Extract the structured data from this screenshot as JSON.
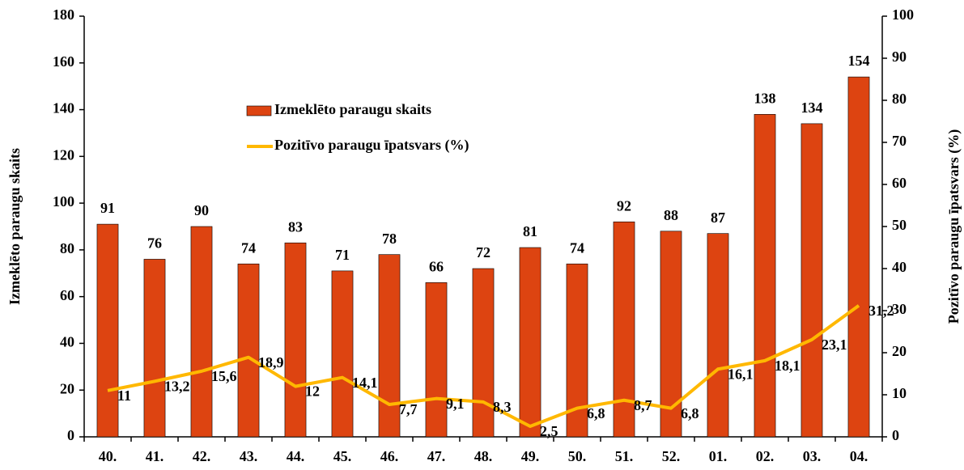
{
  "chart_data": {
    "type": "bar-line",
    "categories": [
      "40.",
      "41.",
      "42.",
      "43.",
      "44.",
      "45.",
      "46.",
      "47.",
      "48.",
      "49.",
      "50.",
      "51.",
      "52.",
      "01.",
      "02.",
      "03.",
      "04."
    ],
    "series": [
      {
        "name": "Izmeklēto paraugu skaits",
        "type": "bar",
        "color": "#dd4411",
        "values": [
          91,
          76,
          90,
          74,
          83,
          71,
          78,
          66,
          72,
          81,
          74,
          92,
          88,
          87,
          138,
          134,
          154
        ]
      },
      {
        "name": "Pozitīvo paraugu īpatsvars (%)",
        "type": "line",
        "axis": "y2",
        "color": "#ffb800",
        "values": [
          11,
          13.2,
          15.6,
          18.9,
          12,
          14.1,
          7.7,
          9.1,
          8.3,
          2.5,
          6.8,
          8.7,
          6.8,
          16.1,
          18.1,
          23.1,
          31.2
        ],
        "value_labels": [
          "11",
          "13,2",
          "15,6",
          "18,9",
          "12",
          "14,1",
          "7,7",
          "9,1",
          "8,3",
          "2,5",
          "6,8",
          "8,7",
          "6,8",
          "16,1",
          "18,1",
          "23,1",
          "31,2"
        ]
      }
    ],
    "y_label": "Izmeklēto paraugu skaits",
    "y2_label": "Pozitīvo paraugu īpatsvars (%)",
    "ylim": [
      0,
      180
    ],
    "yticks": [
      0,
      20,
      40,
      60,
      80,
      100,
      120,
      140,
      160,
      180
    ],
    "y2lim": [
      0,
      100
    ],
    "y2ticks": [
      0,
      10,
      20,
      30,
      40,
      50,
      60,
      70,
      80,
      90,
      100
    ]
  }
}
